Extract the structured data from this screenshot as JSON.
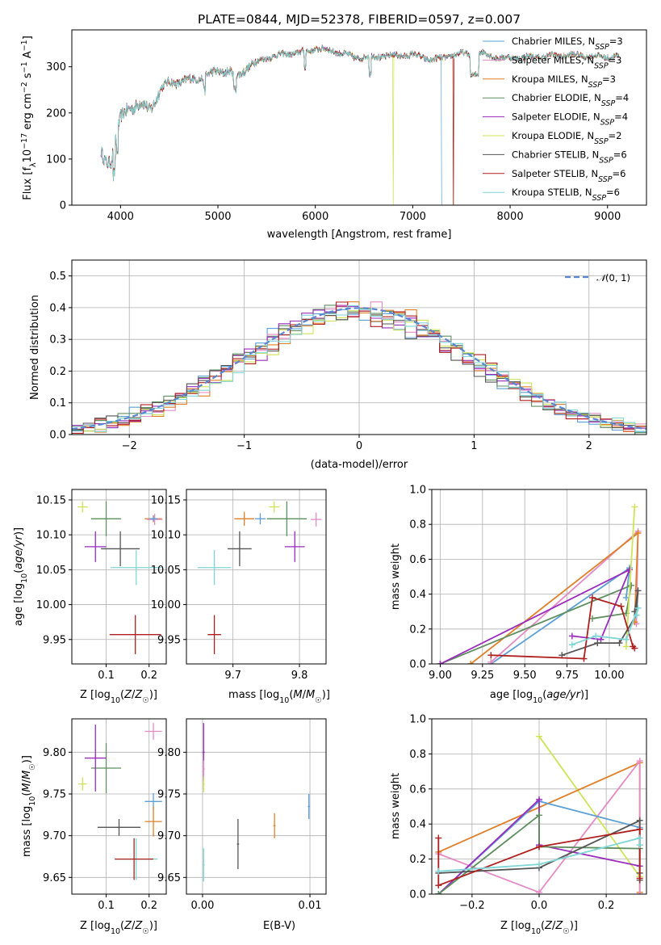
{
  "colors": {
    "Chabrier MILES": "#5a9fd6",
    "Salpeter MILES": "#e48ac4",
    "Kroupa MILES": "#e07f26",
    "Chabrier ELODIE": "#5f8f5f",
    "Salpeter ELODIE": "#9a2bbd",
    "Kroupa ELODIE": "#cfe35a",
    "Chabrier STELIB": "#555555",
    "Salpeter STELIB": "#b01e1e",
    "Kroupa STELIB": "#7fd6d6"
  },
  "chart_data": [
    {
      "type": "line",
      "title": "PLATE=0844, MJD=52378, FIBERID=0597, z=0.007",
      "xlabel": "wavelength [Angstrom, rest frame]",
      "ylabel": "Flux [f_λ10^-17 erg cm^-2 s^-1 A^-1]",
      "xlim": [
        3500,
        9400
      ],
      "ylim": [
        0,
        380
      ],
      "xticks": [
        4000,
        5000,
        6000,
        7000,
        8000,
        9000
      ],
      "yticks": [
        0,
        100,
        200,
        300
      ],
      "grid": false,
      "legend_position": "top-right",
      "legend": [
        {
          "name": "Chabrier MILES",
          "nssp": "3"
        },
        {
          "name": "Salpeter MILES",
          "nssp": "3"
        },
        {
          "name": "Kroupa MILES",
          "nssp": "3"
        },
        {
          "name": "Chabrier ELODIE",
          "nssp": "4"
        },
        {
          "name": "Salpeter ELODIE",
          "nssp": "4"
        },
        {
          "name": "Kroupa ELODIE",
          "nssp": "2"
        },
        {
          "name": "Chabrier STELIB",
          "nssp": "6"
        },
        {
          "name": "Salpeter STELIB",
          "nssp": "6"
        },
        {
          "name": "Kroupa STELIB",
          "nssp": "6"
        }
      ],
      "continuum": [
        [
          3800,
          110
        ],
        [
          3850,
          95
        ],
        [
          3900,
          100
        ],
        [
          3950,
          140
        ],
        [
          4000,
          185
        ],
        [
          4100,
          215
        ],
        [
          4200,
          220
        ],
        [
          4300,
          205
        ],
        [
          4400,
          250
        ],
        [
          4500,
          265
        ],
        [
          4700,
          270
        ],
        [
          4900,
          282
        ],
        [
          5000,
          290
        ],
        [
          5100,
          292
        ],
        [
          5200,
          278
        ],
        [
          5300,
          300
        ],
        [
          5500,
          320
        ],
        [
          5700,
          328
        ],
        [
          5900,
          332
        ],
        [
          6000,
          340
        ],
        [
          6200,
          334
        ],
        [
          6400,
          320
        ],
        [
          6600,
          322
        ],
        [
          6800,
          324
        ],
        [
          7000,
          326
        ],
        [
          7200,
          315
        ],
        [
          7300,
          318
        ],
        [
          7400,
          325
        ],
        [
          7500,
          328
        ],
        [
          7700,
          330
        ],
        [
          7900,
          318
        ],
        [
          8100,
          320
        ],
        [
          8300,
          322
        ],
        [
          8500,
          325
        ],
        [
          8700,
          325
        ],
        [
          8900,
          322
        ],
        [
          9100,
          322
        ]
      ],
      "dropouts": [
        {
          "series": "Kroupa ELODIE",
          "x": [
            3880,
            6800
          ]
        },
        {
          "series": "Kroupa MILES",
          "x": [
            7420
          ]
        },
        {
          "series": "Salpeter STELIB",
          "x": [
            7420
          ]
        },
        {
          "series": "Chabrier MILES",
          "x": [
            7300
          ]
        }
      ]
    },
    {
      "type": "histogram",
      "xlabel": "(data-model)/error",
      "ylabel": "Normed distribution",
      "xlim": [
        -2.5,
        2.5
      ],
      "ylim": [
        0,
        0.55
      ],
      "xticks": [
        -2,
        -1,
        0,
        1,
        2
      ],
      "yticks": [
        0.0,
        0.1,
        0.2,
        0.3,
        0.4,
        0.5
      ],
      "grid": true,
      "legend_position": "top-right",
      "reference": {
        "name": "N(0,1)",
        "color": "#5b86d1"
      }
    },
    {
      "type": "errorbar",
      "xlabel": "Z [log10(Z/Z☉)]",
      "ylabel": "age [log10(age/yr)]",
      "xlim": [
        0.02,
        0.24
      ],
      "ylim": [
        9.915,
        10.165
      ],
      "xticks": [
        0.1,
        0.2
      ],
      "yticks": [
        9.95,
        10.0,
        10.05,
        10.1,
        10.15
      ],
      "points": [
        {
          "series": "Kroupa ELODIE",
          "x": 0.045,
          "y": 10.14,
          "ex": 0.012,
          "ey": 0.008
        },
        {
          "series": "Chabrier ELODIE",
          "x": 0.1,
          "y": 10.123,
          "ex": 0.035,
          "ey": 0.025
        },
        {
          "series": "Salpeter ELODIE",
          "x": 0.075,
          "y": 10.083,
          "ex": 0.025,
          "ey": 0.022
        },
        {
          "series": "Kroupa MILES",
          "x": 0.21,
          "y": 10.123,
          "ex": 0.02,
          "ey": 0.005
        },
        {
          "series": "Salpeter MILES",
          "x": 0.213,
          "y": 10.122,
          "ex": 0.018,
          "ey": 0.008
        },
        {
          "series": "Chabrier MILES",
          "x": 0.21,
          "y": 10.123,
          "ex": 0.01,
          "ey": 0.004
        },
        {
          "series": "Chabrier STELIB",
          "x": 0.133,
          "y": 10.08,
          "ex": 0.045,
          "ey": 0.025
        },
        {
          "series": "Kroupa STELIB",
          "x": 0.17,
          "y": 10.053,
          "ex": 0.06,
          "ey": 0.025
        },
        {
          "series": "Salpeter STELIB",
          "x": 0.168,
          "y": 9.957,
          "ex": 0.06,
          "ey": 0.028
        }
      ]
    },
    {
      "type": "errorbar",
      "xlabel": "mass [log10(M/M☉)]",
      "ylabel": "",
      "xlim": [
        9.63,
        9.84
      ],
      "ylim": [
        9.915,
        10.165
      ],
      "xticks": [
        9.7,
        9.8
      ],
      "yticks": [
        9.95,
        10.0,
        10.05,
        10.1,
        10.15
      ],
      "points": [
        {
          "series": "Kroupa ELODIE",
          "x": 9.762,
          "y": 10.14,
          "ex": 0.008,
          "ey": 0.008
        },
        {
          "series": "Chabrier ELODIE",
          "x": 9.781,
          "y": 10.123,
          "ex": 0.03,
          "ey": 0.025
        },
        {
          "series": "Salpeter ELODIE",
          "x": 9.793,
          "y": 10.083,
          "ex": 0.015,
          "ey": 0.022
        },
        {
          "series": "Kroupa MILES",
          "x": 9.717,
          "y": 10.123,
          "ex": 0.015,
          "ey": 0.01
        },
        {
          "series": "Salpeter MILES",
          "x": 9.825,
          "y": 10.122,
          "ex": 0.008,
          "ey": 0.01
        },
        {
          "series": "Chabrier MILES",
          "x": 9.741,
          "y": 10.123,
          "ex": 0.008,
          "ey": 0.008
        },
        {
          "series": "Chabrier STELIB",
          "x": 9.71,
          "y": 10.08,
          "ex": 0.018,
          "ey": 0.025
        },
        {
          "series": "Kroupa STELIB",
          "x": 9.672,
          "y": 10.053,
          "ex": 0.025,
          "ey": 0.025
        },
        {
          "series": "Salpeter STELIB",
          "x": 9.672,
          "y": 9.957,
          "ex": 0.01,
          "ey": 0.028
        }
      ]
    },
    {
      "type": "line",
      "xlabel": "age [log10(age/yr)]",
      "ylabel": "mass weight",
      "xlim": [
        8.95,
        10.22
      ],
      "ylim": [
        0,
        1
      ],
      "xticks": [
        9.0,
        9.25,
        9.5,
        9.75,
        10.0
      ],
      "yticks": [
        0.0,
        0.2,
        0.4,
        0.6,
        0.8,
        1.0
      ],
      "grid": true,
      "series": [
        {
          "name": "Chabrier MILES",
          "x": [
            9.3,
            10.12,
            10.1
          ],
          "y": [
            0.0,
            0.55,
            0.38
          ]
        },
        {
          "name": "Salpeter MILES",
          "x": [
            9.3,
            10.17,
            10.16
          ],
          "y": [
            0.01,
            0.76,
            0.23
          ]
        },
        {
          "name": "Kroupa MILES",
          "x": [
            9.18,
            10.17,
            10.15
          ],
          "y": [
            0.0,
            0.75,
            0.24
          ]
        },
        {
          "name": "Chabrier ELODIE",
          "x": [
            9.0,
            10.13,
            10.1,
            9.9
          ],
          "y": [
            0.0,
            0.45,
            0.29,
            0.26
          ]
        },
        {
          "name": "Salpeter ELODIE",
          "x": [
            9.0,
            10.12,
            9.95,
            9.78
          ],
          "y": [
            0.0,
            0.54,
            0.14,
            0.16
          ]
        },
        {
          "name": "Kroupa ELODIE",
          "x": [
            10.1,
            10.15
          ],
          "y": [
            0.1,
            0.9
          ]
        },
        {
          "name": "Chabrier STELIB",
          "x": [
            9.72,
            9.93,
            10.06,
            10.16,
            10.17,
            10.15
          ],
          "y": [
            0.05,
            0.12,
            0.12,
            0.28,
            0.42,
            0.3
          ]
        },
        {
          "name": "Salpeter STELIB",
          "x": [
            9.3,
            9.85,
            9.9,
            10.07,
            10.14,
            10.15
          ],
          "y": [
            0.05,
            0.03,
            0.38,
            0.33,
            0.1,
            0.09
          ]
        },
        {
          "name": "Kroupa STELIB",
          "x": [
            9.78,
            9.92,
            10.1,
            10.17,
            10.16
          ],
          "y": [
            0.11,
            0.16,
            0.14,
            0.32,
            0.28
          ]
        }
      ]
    },
    {
      "type": "errorbar",
      "xlabel": "Z [log10(Z/Z☉)]",
      "ylabel": "mass [log10(M/M☉)]",
      "xlim": [
        0.02,
        0.24
      ],
      "ylim": [
        9.63,
        9.84
      ],
      "xticks": [
        0.1,
        0.2
      ],
      "yticks": [
        9.65,
        9.7,
        9.75,
        9.8
      ],
      "points": [
        {
          "series": "Kroupa ELODIE",
          "x": 0.045,
          "y": 9.762,
          "ex": 0.01,
          "ey": 0.008
        },
        {
          "series": "Chabrier ELODIE",
          "x": 0.1,
          "y": 9.781,
          "ex": 0.035,
          "ey": 0.03
        },
        {
          "series": "Salpeter ELODIE",
          "x": 0.075,
          "y": 9.793,
          "ex": 0.025,
          "ey": 0.04
        },
        {
          "series": "Salpeter MILES",
          "x": 0.21,
          "y": 9.825,
          "ex": 0.02,
          "ey": 0.01
        },
        {
          "series": "Chabrier MILES",
          "x": 0.21,
          "y": 9.741,
          "ex": 0.02,
          "ey": 0.01
        },
        {
          "series": "Kroupa MILES",
          "x": 0.21,
          "y": 9.717,
          "ex": 0.02,
          "ey": 0.018
        },
        {
          "series": "Chabrier STELIB",
          "x": 0.13,
          "y": 9.71,
          "ex": 0.05,
          "ey": 0.01
        },
        {
          "series": "Kroupa STELIB",
          "x": 0.17,
          "y": 9.672,
          "ex": 0.05,
          "ey": 0.025
        },
        {
          "series": "Salpeter STELIB",
          "x": 0.165,
          "y": 9.672,
          "ex": 0.045,
          "ey": 0.025
        }
      ]
    },
    {
      "type": "errorbar",
      "xlabel": "E(B-V)",
      "ylabel": "",
      "xlim": [
        -0.0015,
        0.0115
      ],
      "ylim": [
        9.63,
        9.84
      ],
      "xticks": [
        0.0,
        0.01
      ],
      "yticks": [
        9.65,
        9.7,
        9.75,
        9.8
      ],
      "points": [
        {
          "series": "Salpeter ELODIE",
          "x": 0.0001,
          "y": 9.8,
          "ex": 0.0001,
          "ey": 0.035
        },
        {
          "series": "Kroupa ELODIE",
          "x": 0.0001,
          "y": 9.762,
          "ex": 0.0001,
          "ey": 0.01
        },
        {
          "series": "Salpeter MILES",
          "x": 0.0001,
          "y": 9.78,
          "ex": 0.0001,
          "ey": 0.01
        },
        {
          "series": "Kroupa STELIB",
          "x": 0.0001,
          "y": 9.665,
          "ex": 0.0001,
          "ey": 0.02
        },
        {
          "series": "Chabrier STELIB",
          "x": 0.0033,
          "y": 9.69,
          "ex": 0.0001,
          "ey": 0.03
        },
        {
          "series": "Kroupa MILES",
          "x": 0.0067,
          "y": 9.712,
          "ex": 0.0001,
          "ey": 0.015
        },
        {
          "series": "Chabrier MILES",
          "x": 0.0099,
          "y": 9.735,
          "ex": 0.0001,
          "ey": 0.015
        }
      ]
    },
    {
      "type": "line",
      "xlabel": "Z [log10(Z/Z☉)]",
      "ylabel": "mass weight",
      "xlim": [
        -0.32,
        0.32
      ],
      "ylim": [
        0,
        1
      ],
      "xticks": [
        -0.2,
        0.0,
        0.2
      ],
      "yticks": [
        0.0,
        0.2,
        0.4,
        0.6,
        0.8,
        1.0
      ],
      "grid": true,
      "series": [
        {
          "name": "Kroupa ELODIE",
          "x": [
            0.0,
            0.3
          ],
          "y": [
            0.9,
            0.1
          ]
        },
        {
          "name": "Kroupa MILES",
          "x": [
            -0.3,
            0.3,
            0.3
          ],
          "y": [
            0.24,
            0.75,
            0.01
          ]
        },
        {
          "name": "Salpeter MILES",
          "x": [
            -0.3,
            0.0,
            0.3,
            0.3
          ],
          "y": [
            0.23,
            0.01,
            0.76,
            0.0
          ]
        },
        {
          "name": "Chabrier MILES",
          "x": [
            -0.3,
            0.0,
            0.3
          ],
          "y": [
            0.0,
            0.53,
            0.38
          ]
        },
        {
          "name": "Salpeter ELODIE",
          "x": [
            -0.3,
            0.0,
            0.0,
            0.3
          ],
          "y": [
            0.0,
            0.54,
            0.28,
            0.16
          ]
        },
        {
          "name": "Chabrier ELODIE",
          "x": [
            -0.3,
            0.0,
            0.0,
            0.3
          ],
          "y": [
            0.0,
            0.45,
            0.27,
            0.26
          ]
        },
        {
          "name": "Chabrier STELIB",
          "x": [
            -0.3,
            0.0,
            0.3,
            0.3,
            0.3
          ],
          "y": [
            0.12,
            0.15,
            0.42,
            0.12,
            0.08
          ]
        },
        {
          "name": "Salpeter STELIB",
          "x": [
            -0.3,
            -0.3,
            0.0,
            0.3,
            0.3
          ],
          "y": [
            0.32,
            0.05,
            0.27,
            0.37,
            0.09
          ]
        },
        {
          "name": "Kroupa STELIB",
          "x": [
            -0.3,
            0.0,
            0.3,
            0.3
          ],
          "y": [
            0.13,
            0.17,
            0.32,
            0.28
          ]
        }
      ]
    }
  ]
}
